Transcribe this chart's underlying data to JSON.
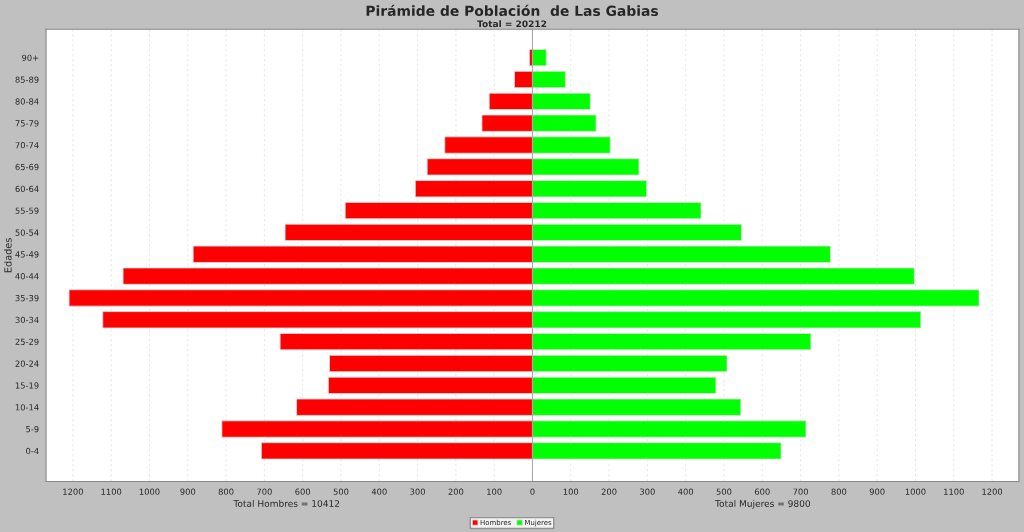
{
  "chart_data": {
    "type": "bar",
    "orientation": "horizontal",
    "title": "Pirámide de Población  de Las Gabias",
    "subtitle": "Total = 20212",
    "ylabel": "Edades",
    "categories": [
      "90+",
      "85-89",
      "80-84",
      "75-79",
      "70-74",
      "65-69",
      "60-64",
      "55-59",
      "50-54",
      "45-49",
      "40-44",
      "35-39",
      "30-34",
      "25-29",
      "20-24",
      "15-19",
      "10-14",
      "5-9",
      "0-4"
    ],
    "series": [
      {
        "name": "Hombres",
        "color": "#ff0000",
        "values": [
          -8,
          -47,
          -113,
          -132,
          -229,
          -275,
          -306,
          -489,
          -646,
          -886,
          -1069,
          -1210,
          -1122,
          -659,
          -530,
          -533,
          -616,
          -811,
          -708
        ]
      },
      {
        "name": "Mujeres",
        "color": "#00ff00",
        "values": [
          36,
          86,
          151,
          166,
          203,
          278,
          298,
          440,
          546,
          778,
          997,
          1166,
          1014,
          727,
          508,
          479,
          544,
          714,
          649
        ]
      }
    ],
    "xlim": [
      -1270,
      1270
    ],
    "xticks": [
      {
        "value": -1200,
        "label": "1200"
      },
      {
        "value": -1100,
        "label": "1100"
      },
      {
        "value": -1000,
        "label": "1000"
      },
      {
        "value": -900,
        "label": "900"
      },
      {
        "value": -800,
        "label": "800"
      },
      {
        "value": -700,
        "label": "700"
      },
      {
        "value": -600,
        "label": "600"
      },
      {
        "value": -500,
        "label": "500"
      },
      {
        "value": -400,
        "label": "400"
      },
      {
        "value": -300,
        "label": "300"
      },
      {
        "value": -200,
        "label": "200"
      },
      {
        "value": -100,
        "label": "100"
      },
      0,
      100,
      200,
      300,
      400,
      500,
      600,
      700,
      800,
      900,
      1000,
      1100,
      1200
    ],
    "annotations": [
      "Total Hombres = 10412",
      "Total Mujeres = 9800"
    ],
    "grid": "x",
    "legend": "bottom",
    "stacked": true
  }
}
